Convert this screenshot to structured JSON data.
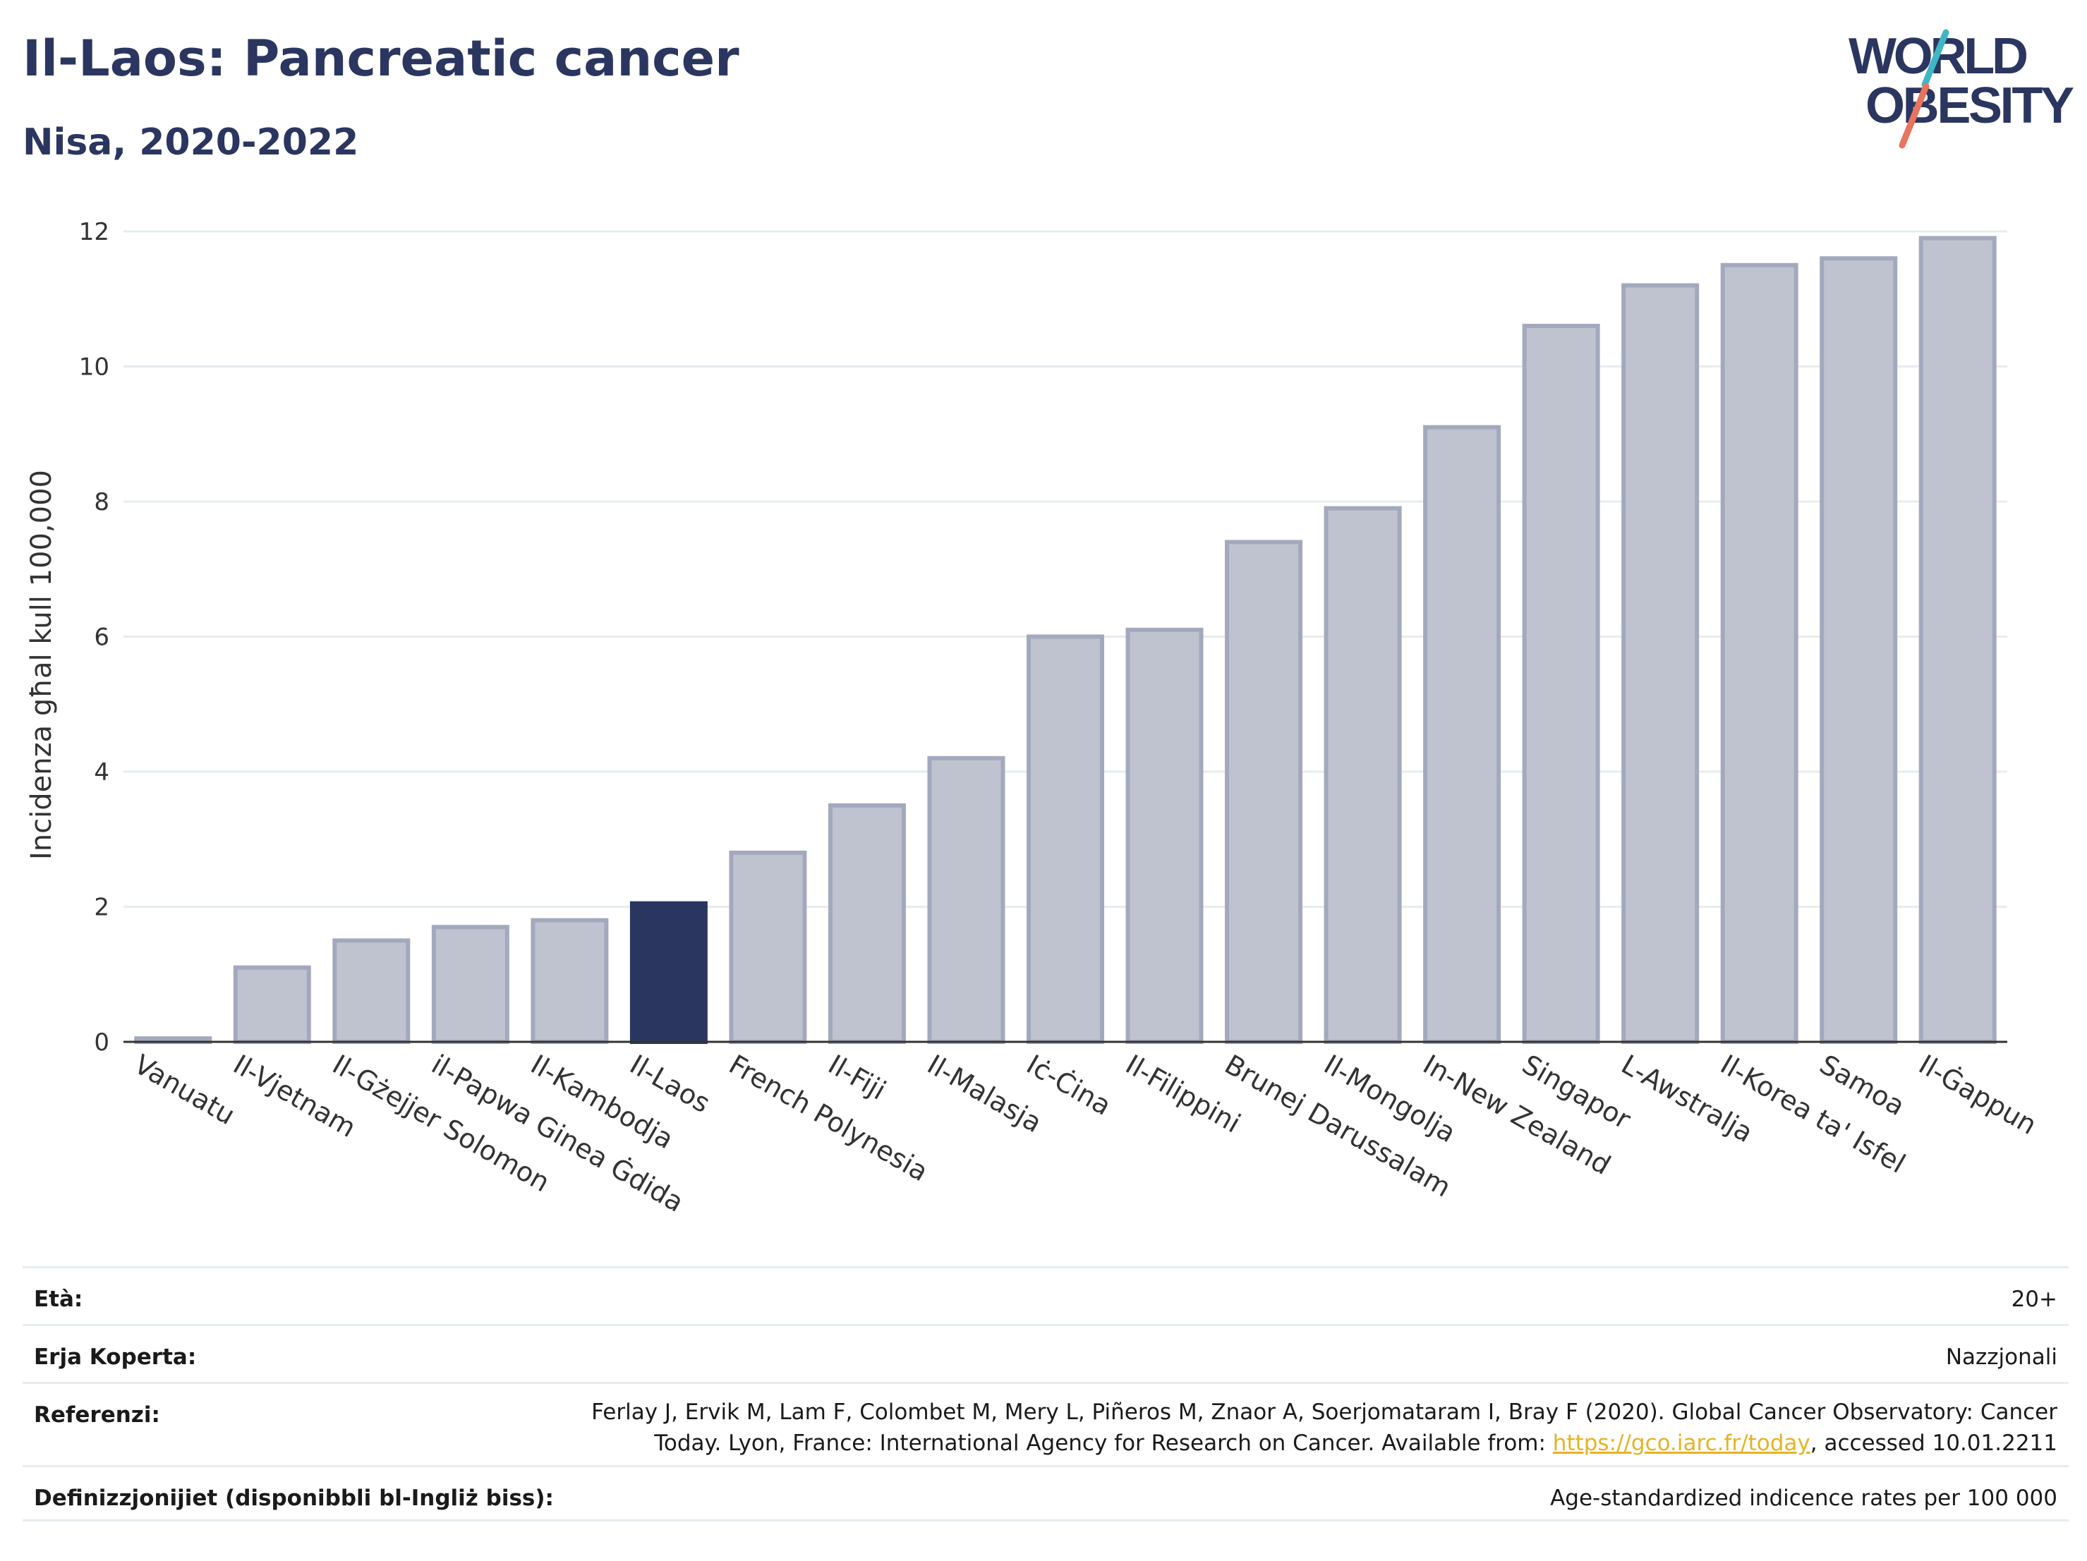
{
  "header": {
    "title": "Il-Laos: Pancreatic cancer",
    "subtitle": "Nisa, 2020-2022"
  },
  "logo": {
    "line1": "WORLD",
    "line2": "OBESITY",
    "slash_colors": [
      "#3fb6c4",
      "#e8735f"
    ],
    "text_color": "#2b3660"
  },
  "chart_data": {
    "type": "bar",
    "categories": [
      "Vanuatu",
      "Il-Vjetnam",
      "Il-Gżejjer Solomon",
      "il-Papwa Ginea Ġdida",
      "Il-Kambodja",
      "Il-Laos",
      "French Polynesia",
      "Il-Fiji",
      "Il-Malasja",
      "Iċ-Ċina",
      "Il-Filippini",
      "Brunej Darussalam",
      "Il-Mongolja",
      "In-New Zealand",
      "Singapor",
      "L-Awstralja",
      "Il-Korea ta' Isfel",
      "Samoa",
      "Il-Ġappun"
    ],
    "values": [
      0.05,
      1.1,
      1.5,
      1.7,
      1.8,
      2.05,
      2.8,
      3.5,
      4.2,
      6.0,
      6.1,
      7.4,
      7.9,
      9.1,
      10.6,
      11.2,
      11.5,
      11.6,
      11.9
    ],
    "highlight": "Il-Laos",
    "ylabel": "Incidenza għal kull 100,000",
    "xlabel": "",
    "ylim": [
      0,
      12
    ],
    "yticks": [
      0,
      2,
      4,
      6,
      8,
      10,
      12
    ],
    "grid": true,
    "colors": {
      "bar": "#bfc3d0",
      "bar_border": "#a3a9bd",
      "highlight": "#2b3660",
      "grid": "#e6ecef"
    }
  },
  "meta": {
    "age_label": "Età:",
    "age_value": "20+",
    "area_label": "Erja Koperta:",
    "area_value": "Nazzjonali",
    "ref_label": "Referenzi:",
    "ref_text_1": "Ferlay J, Ervik M, Lam F, Colombet M, Mery L, Piñeros M, Znaor A, Soerjomataram I, Bray F (2020). Global Cancer Observatory: Cancer Today. Lyon, France: International Agency for Research on Cancer. Available from: ",
    "ref_link": "https://gco.iarc.fr/today",
    "ref_text_2": ", accessed 10.01.2211",
    "def_label": "Definizzjonijiet (disponibbli bl-Ingliż biss):",
    "def_value": "Age-standardized indicence rates per 100 000"
  }
}
